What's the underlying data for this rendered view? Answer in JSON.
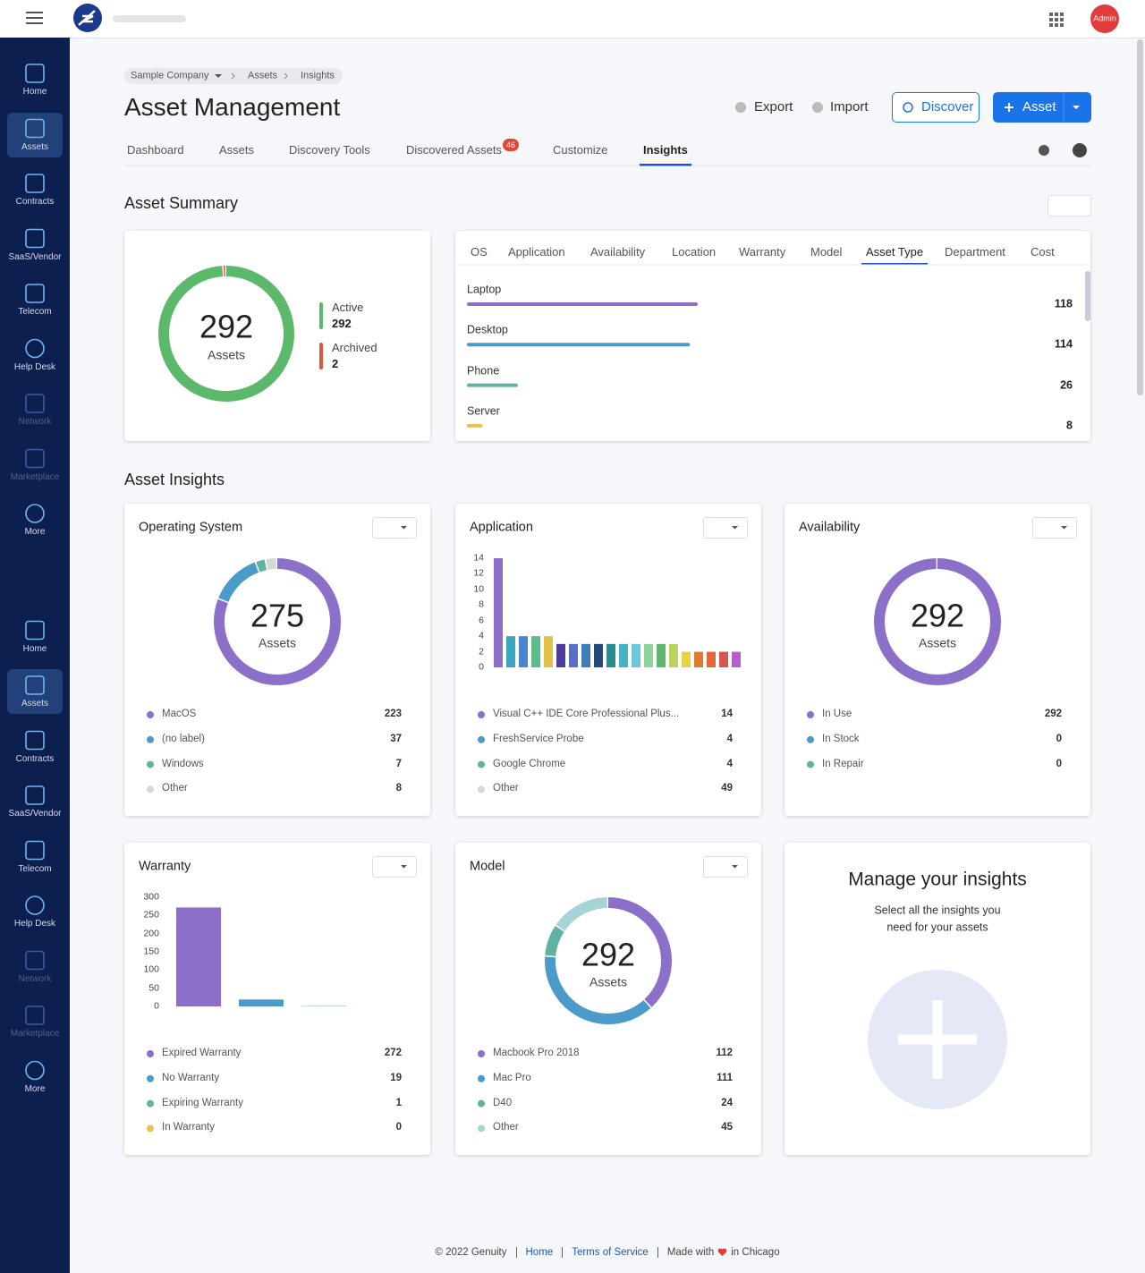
{
  "topbar": {
    "avatar": "Admin"
  },
  "sidebar": {
    "groups": [
      [
        "Home",
        "Assets",
        "Contracts",
        "SaaS/Vendor",
        "Telecom",
        "Help Desk",
        "Network",
        "Marketplace",
        "More"
      ],
      [
        "Home",
        "Assets",
        "Contracts",
        "SaaS/Vendor",
        "Telecom",
        "Help Desk",
        "Network",
        "Marketplace",
        "More"
      ]
    ],
    "active": "Assets",
    "dimmed": [
      "Network",
      "Marketplace"
    ]
  },
  "header": {
    "breadcrumb": [
      "Sample Company",
      "Assets",
      "Insights"
    ],
    "title": "Asset Management",
    "actions": [
      "Export",
      "Import",
      "Discover",
      "Asset"
    ],
    "tabs": [
      "Dashboard",
      "Assets",
      "Discovery Tools",
      "Discovered Assets",
      "Customize",
      "Insights"
    ],
    "badge": 46,
    "active_tab": 5
  },
  "summary": {
    "title": "Asset Summary",
    "donut": {
      "total": 292,
      "label": "Assets",
      "segments": [
        {
          "name": "Active",
          "value": 292,
          "color": "#5cb86a"
        },
        {
          "name": "Archived",
          "value": 2,
          "color": "#e2553f"
        }
      ]
    },
    "tabs": [
      "OS",
      "Application",
      "Availability",
      "Location",
      "Warranty",
      "Model",
      "Asset Type",
      "Department",
      "Cost"
    ],
    "active_tab": 6,
    "bars": [
      {
        "name": "Laptop",
        "value": 118,
        "color": "#8b6fc9"
      },
      {
        "name": "Desktop",
        "value": 114,
        "color": "#4a9bc9"
      },
      {
        "name": "Phone",
        "value": 26,
        "color": "#5fb3a0"
      },
      {
        "name": "Server",
        "value": 8,
        "color": "#e6c34f"
      }
    ]
  },
  "insights": {
    "title": "Asset Insights",
    "cards": [
      {
        "type": "donut",
        "title": "Operating System",
        "total": 275,
        "label": "Assets",
        "items": [
          {
            "name": "MacOS",
            "value": 223,
            "color": "#8b6fc9"
          },
          {
            "name": "(no label)",
            "value": 37,
            "color": "#4a9bc9"
          },
          {
            "name": "Windows",
            "value": 7,
            "color": "#5fb3a0"
          },
          {
            "name": "Other",
            "value": 8,
            "color": "#d6d6d6"
          }
        ]
      },
      {
        "type": "bar",
        "title": "Application",
        "ylim": [
          0,
          14
        ],
        "yticks": [
          0,
          2,
          4,
          6,
          8,
          10,
          12,
          14
        ],
        "bars": {
          "values": [
            14,
            4,
            4,
            4,
            4,
            3,
            3,
            3,
            3,
            3,
            3,
            3,
            3,
            3,
            3,
            2,
            2,
            2,
            2,
            2
          ],
          "colors": [
            "#8b6fc9",
            "#3ea7c0",
            "#4a86cf",
            "#5dbb8c",
            "#e0c24a",
            "#4b3c9e",
            "#5b6fc8",
            "#3d7fb8",
            "#24497e",
            "#2b8c8e",
            "#45b3c4",
            "#6ec7d9",
            "#8fd49a",
            "#5fb86f",
            "#b9d45a",
            "#e8d048",
            "#e07b2c",
            "#e2683a",
            "#d9534f",
            "#b65fc9"
          ]
        },
        "items": [
          {
            "name": "Visual C++ IDE Core Professional Plus...",
            "value": 14,
            "color": "#8b6fc9"
          },
          {
            "name": "FreshService Probe",
            "value": 4,
            "color": "#4a9bc9"
          },
          {
            "name": "Google Chrome",
            "value": 4,
            "color": "#5fb3a0"
          },
          {
            "name": "Other",
            "value": 49,
            "color": "#d6d6d6"
          }
        ]
      },
      {
        "type": "donut",
        "title": "Availability",
        "total": 292,
        "label": "Assets",
        "items": [
          {
            "name": "In Use",
            "value": 292,
            "color": "#8b6fc9"
          },
          {
            "name": "In Stock",
            "value": 0,
            "color": "#4a9bc9"
          },
          {
            "name": "In Repair",
            "value": 0,
            "color": "#5fb3a0"
          }
        ]
      },
      {
        "type": "bar",
        "title": "Warranty",
        "ylim": [
          0,
          300
        ],
        "yticks": [
          0,
          50,
          100,
          150,
          200,
          250,
          300
        ],
        "items": [
          {
            "name": "Expired Warranty",
            "value": 272,
            "color": "#8b6fc9"
          },
          {
            "name": "No Warranty",
            "value": 19,
            "color": "#4a9bc9"
          },
          {
            "name": "Expiring Warranty",
            "value": 1,
            "color": "#5fb3a0"
          },
          {
            "name": "In Warranty",
            "value": 0,
            "color": "#e6c34f"
          }
        ]
      },
      {
        "type": "donut",
        "title": "Model",
        "total": 292,
        "label": "Assets",
        "items": [
          {
            "name": "Macbook Pro 2018",
            "value": 112,
            "color": "#8b6fc9"
          },
          {
            "name": "Mac Pro",
            "value": 111,
            "color": "#4a9bc9"
          },
          {
            "name": "D40",
            "value": 24,
            "color": "#5fb3a0"
          },
          {
            "name": "Other",
            "value": 45,
            "color": "#a6d3d6"
          }
        ]
      }
    ],
    "manage": {
      "title": "Manage your insights",
      "text": [
        "Select all the insights you",
        "need for your assets"
      ]
    }
  },
  "footer": {
    "copyright": "© 2022 Genuity",
    "links": [
      "Home",
      "Terms of Service"
    ],
    "made": "Made with",
    "place": "in Chicago"
  }
}
